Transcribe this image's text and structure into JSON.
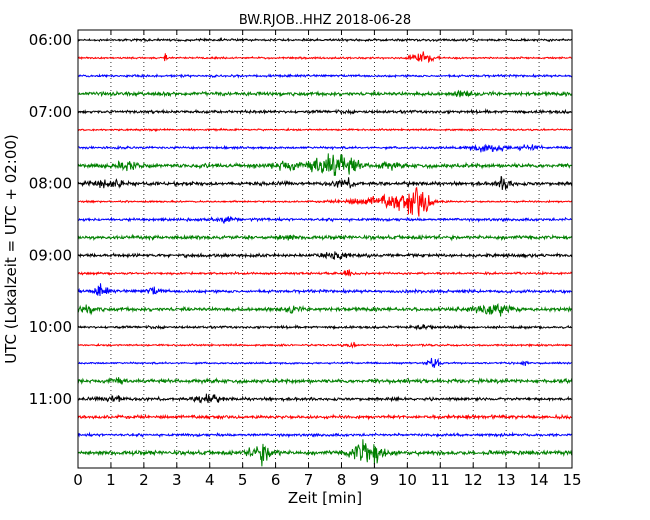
{
  "chart_data": {
    "type": "line",
    "title": "BW.RJOB..HHZ 2018-06-28",
    "xlabel": "Zeit  [min]",
    "ylabel": "UTC (Lokalzeit = UTC + 02:00)",
    "xlim": [
      0,
      15
    ],
    "x_ticks": [
      "0",
      "1",
      "2",
      "3",
      "4",
      "5",
      "6",
      "7",
      "8",
      "9",
      "10",
      "11",
      "12",
      "13",
      "14",
      "15"
    ],
    "grid_x": "dotted",
    "row_minutes": 15,
    "start_time": "06:00",
    "y_tick_labels": [
      "06:00",
      "07:00",
      "08:00",
      "09:00",
      "10:00",
      "11:00"
    ],
    "colors": [
      "#000000",
      "#ff0000",
      "#0000ff",
      "#008000"
    ],
    "series": [
      {
        "row": "06:00",
        "color": "#000000",
        "noise": 1.5,
        "events": []
      },
      {
        "row": "06:15",
        "color": "#ff0000",
        "noise": 1.2,
        "events": [
          {
            "t": 2.65,
            "amp": 8,
            "dur": 0.05
          },
          {
            "t": 10.45,
            "amp": 8,
            "dur": 0.35
          }
        ]
      },
      {
        "row": "06:30",
        "color": "#0000ff",
        "noise": 1.5,
        "events": []
      },
      {
        "row": "06:45",
        "color": "#008000",
        "noise": 2.5,
        "events": [
          {
            "t": 11.7,
            "amp": 3,
            "dur": 0.3
          }
        ]
      },
      {
        "row": "07:00",
        "color": "#000000",
        "noise": 2.0,
        "events": []
      },
      {
        "row": "07:15",
        "color": "#ff0000",
        "noise": 1.2,
        "events": []
      },
      {
        "row": "07:30",
        "color": "#0000ff",
        "noise": 1.5,
        "events": [
          {
            "t": 12.5,
            "amp": 5,
            "dur": 0.6
          },
          {
            "t": 13.7,
            "amp": 3,
            "dur": 0.3
          }
        ]
      },
      {
        "row": "07:45",
        "color": "#008000",
        "noise": 2.8,
        "events": [
          {
            "t": 1.5,
            "amp": 6,
            "dur": 0.4
          },
          {
            "t": 6.3,
            "amp": 7,
            "dur": 0.3
          },
          {
            "t": 7.3,
            "amp": 9,
            "dur": 0.5
          },
          {
            "t": 7.8,
            "amp": 11,
            "dur": 0.4
          },
          {
            "t": 8.2,
            "amp": 8,
            "dur": 0.4
          },
          {
            "t": 9.4,
            "amp": 4,
            "dur": 0.3
          }
        ]
      },
      {
        "row": "08:00",
        "color": "#000000",
        "noise": 2.4,
        "events": [
          {
            "t": 0.9,
            "amp": 4,
            "dur": 0.6
          },
          {
            "t": 8.1,
            "amp": 5,
            "dur": 0.3
          },
          {
            "t": 12.95,
            "amp": 9,
            "dur": 0.2
          }
        ]
      },
      {
        "row": "08:15",
        "color": "#ff0000",
        "noise": 1.2,
        "events": [
          {
            "t": 9.1,
            "amp": 6,
            "dur": 1.0
          },
          {
            "t": 10.0,
            "amp": 9,
            "dur": 0.6
          },
          {
            "t": 10.4,
            "amp": 16,
            "dur": 0.3
          }
        ]
      },
      {
        "row": "08:30",
        "color": "#0000ff",
        "noise": 1.8,
        "events": [
          {
            "t": 4.5,
            "amp": 4,
            "dur": 0.3
          }
        ]
      },
      {
        "row": "08:45",
        "color": "#008000",
        "noise": 2.5,
        "events": [
          {
            "t": 6.3,
            "amp": 3,
            "dur": 0.3
          }
        ]
      },
      {
        "row": "09:00",
        "color": "#000000",
        "noise": 2.2,
        "events": [
          {
            "t": 7.8,
            "amp": 7,
            "dur": 0.3
          }
        ]
      },
      {
        "row": "09:15",
        "color": "#ff0000",
        "noise": 1.5,
        "events": [
          {
            "t": 8.2,
            "amp": 5,
            "dur": 0.1
          }
        ]
      },
      {
        "row": "09:30",
        "color": "#0000ff",
        "noise": 2.0,
        "events": [
          {
            "t": 0.7,
            "amp": 8,
            "dur": 0.2
          },
          {
            "t": 2.3,
            "amp": 5,
            "dur": 0.2
          }
        ]
      },
      {
        "row": "09:45",
        "color": "#008000",
        "noise": 2.5,
        "events": [
          {
            "t": 0.3,
            "amp": 4,
            "dur": 0.3
          },
          {
            "t": 6.5,
            "amp": 5,
            "dur": 0.2
          },
          {
            "t": 12.6,
            "amp": 9,
            "dur": 0.5
          }
        ]
      },
      {
        "row": "10:00",
        "color": "#000000",
        "noise": 1.6,
        "events": [
          {
            "t": 10.4,
            "amp": 3,
            "dur": 0.3
          }
        ]
      },
      {
        "row": "10:15",
        "color": "#ff0000",
        "noise": 1.2,
        "events": [
          {
            "t": 8.3,
            "amp": 3,
            "dur": 0.2
          }
        ]
      },
      {
        "row": "10:30",
        "color": "#0000ff",
        "noise": 1.2,
        "events": [
          {
            "t": 10.8,
            "amp": 8,
            "dur": 0.2
          },
          {
            "t": 13.6,
            "amp": 4,
            "dur": 0.1
          }
        ]
      },
      {
        "row": "10:45",
        "color": "#008000",
        "noise": 2.6,
        "events": [
          {
            "t": 1.2,
            "amp": 5,
            "dur": 0.2
          }
        ]
      },
      {
        "row": "11:00",
        "color": "#000000",
        "noise": 2.0,
        "events": [
          {
            "t": 1.1,
            "amp": 4,
            "dur": 0.3
          },
          {
            "t": 3.9,
            "amp": 8,
            "dur": 0.3
          }
        ]
      },
      {
        "row": "11:15",
        "color": "#ff0000",
        "noise": 2.2,
        "events": []
      },
      {
        "row": "11:30",
        "color": "#0000ff",
        "noise": 1.8,
        "events": []
      },
      {
        "row": "11:45",
        "color": "#008000",
        "noise": 2.8,
        "events": [
          {
            "t": 5.6,
            "amp": 12,
            "dur": 0.35
          },
          {
            "t": 8.8,
            "amp": 19,
            "dur": 0.45
          }
        ]
      }
    ]
  }
}
